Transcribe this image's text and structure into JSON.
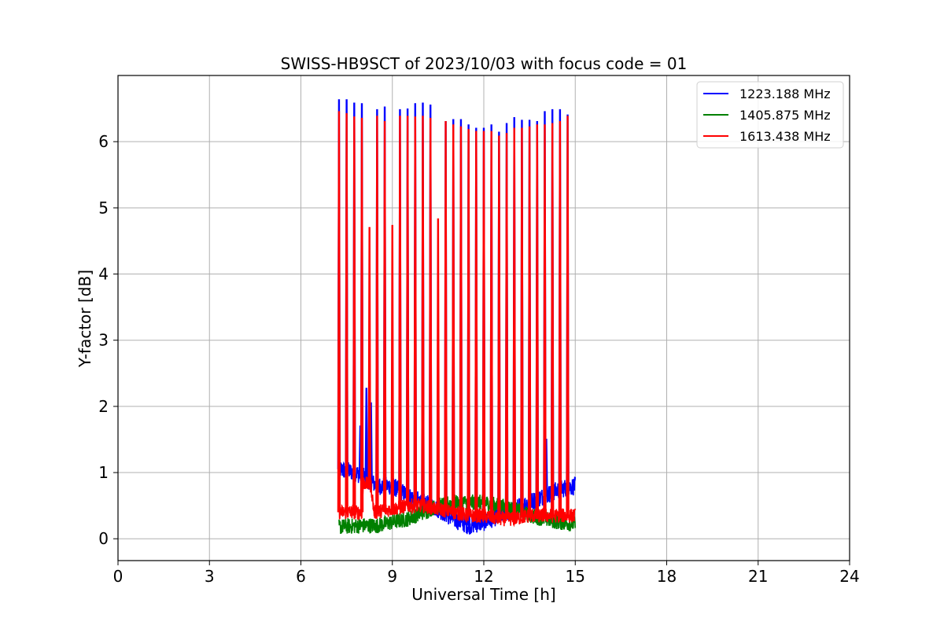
{
  "chart_data": {
    "type": "line",
    "title": "SWISS-HB9SCT of 2023/10/03 with focus code = 01",
    "xlabel": "Universal Time [h]",
    "ylabel": "Y-factor [dB]",
    "xlim": [
      0,
      24
    ],
    "ylim": [
      -0.33,
      7.0
    ],
    "xticks": [
      0,
      3,
      6,
      9,
      12,
      15,
      18,
      21,
      24
    ],
    "yticks": [
      0,
      1,
      2,
      3,
      4,
      5,
      6
    ],
    "grid": true,
    "legend_position": "top-right",
    "data_start": 7.25,
    "data_end": 15.0,
    "series": [
      {
        "name": "1223.188 MHz",
        "color": "#0000ff",
        "baseline": [
          [
            7.25,
            1.05
          ],
          [
            7.8,
            1.0
          ],
          [
            8.0,
            0.95
          ],
          [
            8.5,
            0.8
          ],
          [
            9.0,
            0.8
          ],
          [
            9.5,
            0.65
          ],
          [
            10.0,
            0.55
          ],
          [
            10.5,
            0.45
          ],
          [
            11.0,
            0.3
          ],
          [
            11.5,
            0.2
          ],
          [
            12.0,
            0.25
          ],
          [
            12.5,
            0.35
          ],
          [
            13.0,
            0.45
          ],
          [
            13.5,
            0.55
          ],
          [
            14.0,
            0.65
          ],
          [
            14.5,
            0.75
          ],
          [
            15.0,
            0.8
          ]
        ],
        "spikes": [
          [
            7.25,
            6.63
          ],
          [
            7.5,
            6.63
          ],
          [
            7.75,
            6.58
          ],
          [
            8.0,
            6.57
          ],
          [
            8.5,
            6.48
          ],
          [
            8.75,
            6.52
          ],
          [
            9.25,
            6.48
          ],
          [
            9.5,
            6.49
          ],
          [
            9.75,
            6.57
          ],
          [
            10.0,
            6.58
          ],
          [
            10.25,
            6.55
          ],
          [
            10.75,
            6.3
          ],
          [
            11.0,
            6.33
          ],
          [
            11.25,
            6.33
          ],
          [
            11.5,
            6.25
          ],
          [
            11.75,
            6.2
          ],
          [
            12.0,
            6.2
          ],
          [
            12.25,
            6.25
          ],
          [
            12.5,
            6.14
          ],
          [
            12.75,
            6.27
          ],
          [
            13.0,
            6.36
          ],
          [
            13.25,
            6.32
          ],
          [
            13.5,
            6.32
          ],
          [
            13.75,
            6.3
          ],
          [
            14.0,
            6.45
          ],
          [
            14.25,
            6.48
          ],
          [
            14.5,
            6.48
          ],
          [
            14.75,
            6.4
          ],
          [
            7.95,
            1.7
          ],
          [
            8.15,
            2.27
          ],
          [
            8.3,
            2.05
          ],
          [
            14.05,
            1.5
          ]
        ]
      },
      {
        "name": "1405.875 MHz",
        "color": "#008000",
        "baseline": [
          [
            7.25,
            0.18
          ],
          [
            8.0,
            0.2
          ],
          [
            8.5,
            0.2
          ],
          [
            9.0,
            0.25
          ],
          [
            9.5,
            0.3
          ],
          [
            10.0,
            0.4
          ],
          [
            10.5,
            0.5
          ],
          [
            11.0,
            0.55
          ],
          [
            11.5,
            0.55
          ],
          [
            12.0,
            0.55
          ],
          [
            12.5,
            0.5
          ],
          [
            13.0,
            0.45
          ],
          [
            13.5,
            0.35
          ],
          [
            14.0,
            0.3
          ],
          [
            14.5,
            0.25
          ],
          [
            15.0,
            0.22
          ]
        ],
        "spikes": []
      },
      {
        "name": "1613.438 MHz",
        "color": "#ff0000",
        "baseline": [
          [
            7.25,
            0.4
          ],
          [
            7.8,
            0.4
          ],
          [
            8.0,
            0.4
          ],
          [
            8.05,
            0.85
          ],
          [
            8.3,
            0.8
          ],
          [
            8.4,
            0.4
          ],
          [
            9.0,
            0.45
          ],
          [
            9.5,
            0.5
          ],
          [
            10.0,
            0.5
          ],
          [
            10.5,
            0.45
          ],
          [
            11.0,
            0.4
          ],
          [
            11.5,
            0.35
          ],
          [
            12.0,
            0.35
          ],
          [
            12.5,
            0.3
          ],
          [
            13.0,
            0.3
          ],
          [
            13.5,
            0.35
          ],
          [
            14.0,
            0.35
          ],
          [
            14.5,
            0.35
          ],
          [
            15.0,
            0.35
          ]
        ],
        "spikes": [
          [
            7.25,
            6.45
          ],
          [
            7.5,
            6.42
          ],
          [
            7.75,
            6.37
          ],
          [
            8.0,
            6.35
          ],
          [
            8.25,
            4.7
          ],
          [
            8.5,
            6.38
          ],
          [
            8.75,
            6.3
          ],
          [
            9.0,
            4.73
          ],
          [
            9.25,
            6.38
          ],
          [
            9.5,
            6.38
          ],
          [
            9.75,
            6.37
          ],
          [
            10.0,
            6.38
          ],
          [
            10.25,
            6.35
          ],
          [
            10.5,
            4.83
          ],
          [
            10.75,
            6.3
          ],
          [
            11.0,
            6.25
          ],
          [
            11.25,
            6.22
          ],
          [
            11.5,
            6.18
          ],
          [
            11.75,
            6.15
          ],
          [
            12.0,
            6.15
          ],
          [
            12.25,
            6.15
          ],
          [
            12.5,
            6.08
          ],
          [
            12.75,
            6.12
          ],
          [
            13.0,
            6.2
          ],
          [
            13.25,
            6.2
          ],
          [
            13.5,
            6.22
          ],
          [
            13.75,
            6.25
          ],
          [
            14.0,
            6.25
          ],
          [
            14.25,
            6.27
          ],
          [
            14.5,
            6.3
          ],
          [
            14.75,
            6.38
          ]
        ]
      }
    ]
  }
}
